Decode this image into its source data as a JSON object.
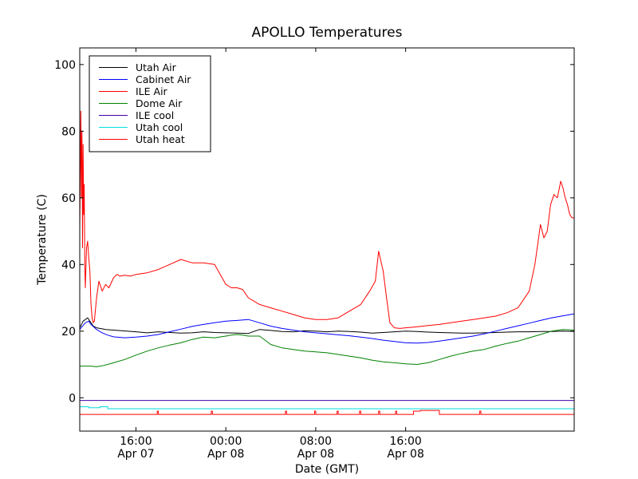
{
  "chart_data": {
    "type": "line",
    "title": "APOLLO Temperatures",
    "xlabel": "Date (GMT)",
    "ylabel": "Temperature (C)",
    "xlim": [
      0,
      44
    ],
    "ylim": [
      -10,
      105
    ],
    "x_unit": "hours since plot start (start ≈ Apr 07 11:00)",
    "yticks": [
      0,
      20,
      40,
      60,
      80,
      100
    ],
    "xticks": [
      {
        "x": 5,
        "line1": "16:00",
        "line2": "Apr 07"
      },
      {
        "x": 13,
        "line1": "00:00",
        "line2": "Apr 08"
      },
      {
        "x": 21,
        "line1": "08:00",
        "line2": "Apr 08"
      },
      {
        "x": 29,
        "line1": "16:00",
        "line2": "Apr 08"
      }
    ],
    "grid": false,
    "legend_position": "top-left",
    "series": [
      {
        "name": "Utah Air",
        "color": "#000000",
        "x": [
          0,
          0.3,
          0.7,
          1.0,
          1.2,
          1.5,
          2.0,
          2.3,
          3,
          5,
          6,
          7,
          8,
          9,
          10,
          11,
          12,
          13,
          14,
          15,
          16,
          17,
          18,
          19,
          20,
          21,
          22,
          23,
          24,
          25,
          26,
          27,
          28,
          29,
          30,
          31,
          32,
          33,
          34,
          35,
          36,
          37,
          38,
          39,
          40,
          41,
          42,
          43,
          44
        ],
        "y": [
          21,
          23,
          24,
          22.5,
          21.5,
          21,
          20.7,
          20.5,
          20.3,
          19.8,
          19.5,
          19.8,
          19.6,
          19.4,
          19.5,
          19.8,
          19.6,
          19.5,
          19.4,
          19.3,
          20.5,
          20.2,
          19.9,
          19.8,
          20.1,
          20,
          19.8,
          20,
          19.9,
          19.7,
          19.4,
          19.6,
          19.8,
          20,
          19.9,
          19.7,
          19.6,
          19.5,
          19.4,
          19.4,
          19.5,
          19.6,
          19.7,
          19.8,
          19.8,
          19.9,
          19.9,
          20,
          19.9
        ]
      },
      {
        "name": "Cabinet Air",
        "color": "#0000ff",
        "x": [
          0,
          0.5,
          0.8,
          1.0,
          1.5,
          2,
          2.5,
          3,
          4,
          5,
          6,
          7,
          8,
          9,
          10,
          11,
          12,
          13,
          14,
          15,
          16,
          17,
          18,
          19,
          20,
          21,
          22,
          23,
          24,
          25,
          26,
          27,
          28,
          29,
          30,
          31,
          32,
          33,
          34,
          35,
          36,
          37,
          38,
          39,
          40,
          41,
          42,
          43,
          44
        ],
        "y": [
          20.5,
          22.5,
          23,
          22,
          20.5,
          19.5,
          18.8,
          18.3,
          18,
          18.2,
          18.5,
          19,
          19.8,
          20.6,
          21.4,
          22,
          22.5,
          23,
          23.2,
          23.5,
          22.5,
          21.5,
          20.8,
          20.3,
          19.8,
          19.5,
          19.2,
          18.9,
          18.6,
          18.2,
          17.8,
          17.3,
          16.9,
          16.5,
          16.4,
          16.6,
          17,
          17.5,
          18,
          18.5,
          19.2,
          20,
          20.8,
          21.6,
          22.4,
          23.2,
          24,
          24.6,
          25.2
        ]
      },
      {
        "name": "ILE Air",
        "color": "#ff0000",
        "x": [
          0,
          0.1,
          0.15,
          0.2,
          0.25,
          0.3,
          0.35,
          0.4,
          0.45,
          0.5,
          0.6,
          0.7,
          0.8,
          0.9,
          1.0,
          1.1,
          1.2,
          1.3,
          1.5,
          1.7,
          2.0,
          2.3,
          2.6,
          3,
          3.3,
          3.6,
          4,
          4.5,
          5,
          6,
          7,
          8,
          9,
          10,
          11,
          12,
          12.5,
          13,
          13.5,
          14,
          14.5,
          15,
          16,
          17,
          18,
          19,
          20,
          21,
          22,
          23,
          24,
          25,
          25.8,
          26.3,
          26.6,
          27,
          27.3,
          27.6,
          28,
          28.5,
          29,
          30,
          31,
          32,
          33,
          34,
          35,
          36,
          37,
          38,
          39,
          40,
          40.5,
          41,
          41.3,
          41.6,
          41.9,
          42.2,
          42.5,
          42.8,
          43,
          43.2,
          43.4,
          43.6,
          43.8,
          44
        ],
        "y": [
          50,
          86,
          60,
          80,
          45,
          76,
          55,
          64,
          40,
          33,
          45,
          47,
          42,
          38,
          28,
          24,
          22.5,
          23,
          30,
          35,
          32,
          34,
          33,
          36,
          37,
          36.5,
          36.8,
          36.5,
          37,
          37.5,
          38.5,
          40,
          41.5,
          40.5,
          40.5,
          40,
          37,
          34,
          33,
          33,
          32.5,
          30,
          28,
          27,
          26,
          25,
          24,
          23.5,
          23.5,
          24,
          26,
          28,
          32,
          35,
          44,
          38,
          30,
          22.5,
          21,
          20.8,
          21,
          21.3,
          21.7,
          22,
          22.5,
          23,
          23.5,
          24,
          24.5,
          25.5,
          27,
          32,
          40,
          52,
          48,
          50,
          58,
          61,
          60,
          65,
          63,
          60,
          58,
          55,
          54,
          54
        ]
      },
      {
        "name": "Dome Air",
        "color": "#008000",
        "x": [
          0,
          0.5,
          1,
          1.5,
          2,
          2.5,
          3,
          4,
          5,
          6,
          7,
          8,
          9,
          10,
          11,
          12,
          13,
          13.5,
          14,
          14.5,
          15,
          16,
          17,
          18,
          19,
          20,
          21,
          22,
          23,
          24,
          25,
          26,
          27,
          28,
          29,
          30,
          31,
          32,
          33,
          34,
          35,
          36,
          37,
          38,
          39,
          40,
          41,
          42,
          43,
          44
        ],
        "y": [
          9.5,
          9.5,
          9.5,
          9.3,
          9.6,
          10,
          10.5,
          11.5,
          12.8,
          14,
          15,
          15.8,
          16.5,
          17.5,
          18.2,
          18,
          18.5,
          18.8,
          19,
          18.8,
          18.5,
          18.5,
          16,
          15,
          14.5,
          14,
          13.8,
          13.5,
          13,
          12.5,
          12,
          11.3,
          10.8,
          10.5,
          10.2,
          10,
          10.5,
          11.5,
          12.5,
          13.3,
          14,
          14.5,
          15.5,
          16.3,
          17,
          18,
          19,
          20,
          20.5,
          20.3
        ]
      },
      {
        "name": "ILE cool",
        "color": "#4000aa",
        "x": [
          0,
          44
        ],
        "y": [
          -0.8,
          -0.8
        ]
      },
      {
        "name": "Utah cool",
        "color": "#00dede",
        "x": [
          0,
          0.8,
          0.8,
          1.8,
          1.8,
          2.5,
          2.5,
          44
        ],
        "y": [
          -2.7,
          -2.7,
          -3.0,
          -3.0,
          -2.7,
          -2.7,
          -3.3,
          -3.3
        ]
      },
      {
        "name": "Utah heat",
        "color": "#ff0000",
        "x": [
          0,
          6.9,
          6.9,
          7.0,
          7.0,
          11.7,
          11.7,
          11.8,
          11.8,
          18.3,
          18.3,
          18.4,
          18.4,
          20.9,
          20.9,
          21.0,
          21.0,
          22.9,
          22.9,
          23.0,
          23.0,
          24.9,
          24.9,
          25.0,
          25.0,
          26.6,
          26.6,
          26.7,
          26.7,
          28.1,
          28.1,
          28.2,
          28.2,
          29.7,
          29.7,
          30.3,
          30.3,
          32.0,
          32.0,
          35.6,
          35.6,
          35.7,
          35.7,
          44
        ],
        "y": [
          -5,
          -5,
          -4,
          -4,
          -5,
          -5,
          -4,
          -4,
          -5,
          -5,
          -4,
          -4,
          -5,
          -5,
          -4,
          -4,
          -5,
          -5,
          -4,
          -4,
          -5,
          -5,
          -4,
          -4,
          -5,
          -5,
          -4,
          -4,
          -5,
          -5,
          -4,
          -4,
          -5,
          -5,
          -4,
          -4,
          -3.8,
          -3.8,
          -5,
          -5,
          -4,
          -4,
          -5,
          -5
        ]
      }
    ]
  }
}
